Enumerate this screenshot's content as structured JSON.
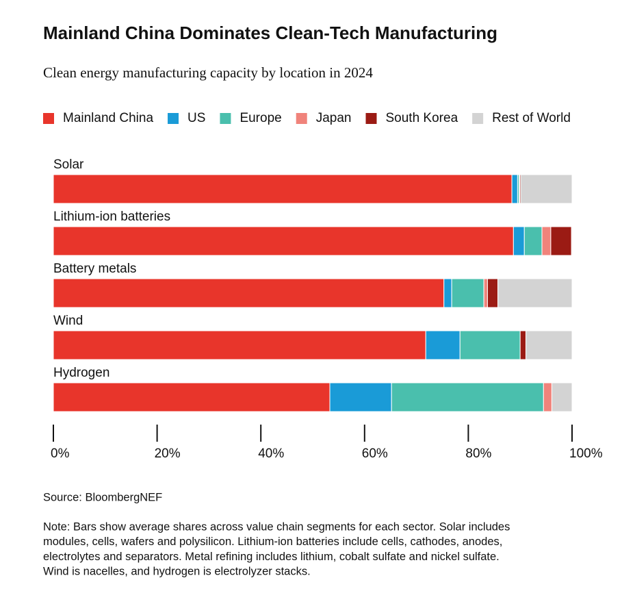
{
  "chart_data": {
    "type": "stacked-barh",
    "title": "Mainland China Dominates Clean-Tech Manufacturing",
    "subtitle": "Clean energy manufacturing capacity by location in 2024",
    "categories": [
      "Solar",
      "Lithium-ion batteries",
      "Battery metals",
      "Wind",
      "Hydrogen"
    ],
    "series": [
      {
        "name": "Mainland China",
        "color": "#e8352b",
        "values": [
          88.4,
          88.7,
          75.3,
          71.8,
          53.3
        ]
      },
      {
        "name": "US",
        "color": "#1a9bd7",
        "values": [
          1.1,
          2.1,
          1.5,
          6.6,
          11.9
        ]
      },
      {
        "name": "Europe",
        "color": "#4abfad",
        "values": [
          0.3,
          3.4,
          6.2,
          11.6,
          29.3
        ]
      },
      {
        "name": "Japan",
        "color": "#f0837b",
        "values": [
          0.1,
          1.7,
          0.7,
          0,
          1.6
        ]
      },
      {
        "name": "South Korea",
        "color": "#9b1b14",
        "values": [
          0.2,
          4.0,
          2.0,
          1.1,
          0
        ]
      },
      {
        "name": "Rest of World",
        "color": "#d3d3d3",
        "values": [
          9.9,
          0.1,
          14.3,
          8.9,
          3.9
        ]
      }
    ],
    "xlim": [
      0,
      100
    ],
    "xticks": [
      {
        "value": 0,
        "label": "0%"
      },
      {
        "value": 20,
        "label": "20%"
      },
      {
        "value": 40,
        "label": "40%"
      },
      {
        "value": 60,
        "label": "60%"
      },
      {
        "value": 80,
        "label": "80%"
      },
      {
        "value": 100,
        "label": "100%"
      }
    ],
    "source": "Source: BloombergNEF",
    "note": [
      "Note: Bars show average shares across value chain segments for each sector. Solar includes",
      "modules, cells, wafers and polysilicon. Lithium-ion batteries include cells, cathodes, anodes,",
      "electrolytes and separators. Metal refining includes lithium, cobalt sulfate and nickel sulfate.",
      "Wind is nacelles, and hydrogen is electrolyzer stacks."
    ]
  }
}
